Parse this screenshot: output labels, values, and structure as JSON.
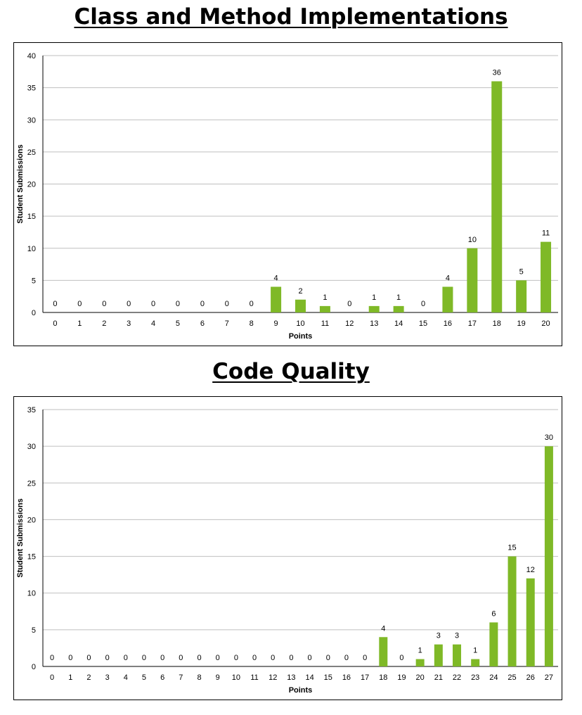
{
  "chart_data": [
    {
      "type": "bar",
      "title": "Class and Method Implementations",
      "xlabel": "Points",
      "ylabel": "Student Submissions",
      "ylim": [
        0,
        40
      ],
      "yticks": [
        0,
        5,
        10,
        15,
        20,
        25,
        30,
        35,
        40
      ],
      "grid": true,
      "legend": "none",
      "color": "#7fb927",
      "categories": [
        "0",
        "1",
        "2",
        "3",
        "4",
        "5",
        "6",
        "7",
        "8",
        "9",
        "10",
        "11",
        "12",
        "13",
        "14",
        "15",
        "16",
        "17",
        "18",
        "19",
        "20"
      ],
      "values": [
        0,
        0,
        0,
        0,
        0,
        0,
        0,
        0,
        0,
        4,
        2,
        1,
        0,
        1,
        1,
        0,
        4,
        10,
        36,
        5,
        11
      ]
    },
    {
      "type": "bar",
      "title": "Code Quality",
      "xlabel": "Points",
      "ylabel": "Student Submissions",
      "ylim": [
        0,
        35
      ],
      "yticks": [
        0,
        5,
        10,
        15,
        20,
        25,
        30,
        35
      ],
      "grid": true,
      "legend": "none",
      "color": "#7fb927",
      "categories": [
        "0",
        "1",
        "2",
        "3",
        "4",
        "5",
        "6",
        "7",
        "8",
        "9",
        "10",
        "11",
        "12",
        "13",
        "14",
        "15",
        "16",
        "17",
        "18",
        "19",
        "20",
        "21",
        "22",
        "23",
        "24",
        "25",
        "26",
        "27"
      ],
      "values": [
        0,
        0,
        0,
        0,
        0,
        0,
        0,
        0,
        0,
        0,
        0,
        0,
        0,
        0,
        0,
        0,
        0,
        0,
        4,
        0,
        1,
        3,
        3,
        1,
        6,
        15,
        12,
        30
      ]
    }
  ]
}
